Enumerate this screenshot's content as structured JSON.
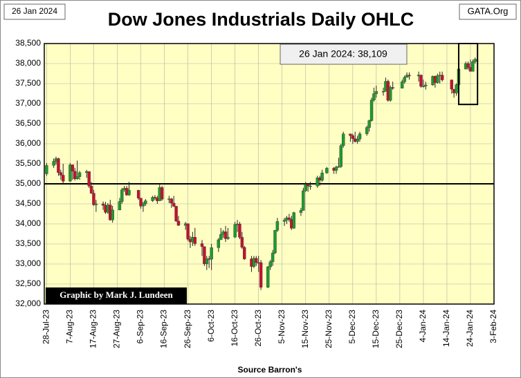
{
  "chart_data": {
    "type": "candlestick",
    "title": "Dow Jones Industrials Daily OHLC",
    "date_label": "26 Jan 2024",
    "site": "GATA.Org",
    "annotation": "26 Jan 2024:  38,109",
    "credit": "Graphic by Mark J. Lundeen",
    "x_label": "Source Barron's",
    "up_color": "#1e9b2a",
    "down_color": "#c8102e",
    "background": "#ffffc4",
    "grid": true,
    "reference_line": 35000,
    "highlight_box": {
      "x": [
        "2024-01-19",
        "2024-01-27"
      ],
      "y": [
        36980,
        38500
      ]
    },
    "xlim": [
      "2023-07-27",
      "2024-02-03"
    ],
    "xticks": [
      {
        "value": "2023-07-28",
        "label": "28-Jul-23"
      },
      {
        "value": "2023-08-07",
        "label": "7-Aug-23"
      },
      {
        "value": "2023-08-17",
        "label": "17-Aug-23"
      },
      {
        "value": "2023-08-27",
        "label": "27-Aug-23"
      },
      {
        "value": "2023-09-06",
        "label": "6-Sep-23"
      },
      {
        "value": "2023-09-16",
        "label": "16-Sep-23"
      },
      {
        "value": "2023-09-26",
        "label": "26-Sep-23"
      },
      {
        "value": "2023-10-06",
        "label": "6-Oct-23"
      },
      {
        "value": "2023-10-16",
        "label": "16-Oct-23"
      },
      {
        "value": "2023-10-26",
        "label": "26-Oct-23"
      },
      {
        "value": "2023-11-05",
        "label": "5-Nov-23"
      },
      {
        "value": "2023-11-15",
        "label": "15-Nov-23"
      },
      {
        "value": "2023-11-25",
        "label": "25-Nov-23"
      },
      {
        "value": "2023-12-05",
        "label": "5-Dec-23"
      },
      {
        "value": "2023-12-15",
        "label": "15-Dec-23"
      },
      {
        "value": "2023-12-25",
        "label": "25-Dec-23"
      },
      {
        "value": "2024-01-04",
        "label": "4-Jan-24"
      },
      {
        "value": "2024-01-14",
        "label": "14-Jan-24"
      },
      {
        "value": "2024-01-24",
        "label": "24-Jan-24"
      },
      {
        "value": "2024-02-03",
        "label": "3-Feb-24"
      }
    ],
    "ylim": [
      32000,
      38500
    ],
    "yticks": [
      {
        "value": 32000,
        "label": "32,000"
      },
      {
        "value": 32500,
        "label": "32,500"
      },
      {
        "value": 33000,
        "label": "33,000"
      },
      {
        "value": 33500,
        "label": "33,500"
      },
      {
        "value": 34000,
        "label": "34,000"
      },
      {
        "value": 34500,
        "label": "34,500"
      },
      {
        "value": 35000,
        "label": "35,000"
      },
      {
        "value": 35500,
        "label": "35,500"
      },
      {
        "value": 36000,
        "label": "36,000"
      },
      {
        "value": 36500,
        "label": "36,500"
      },
      {
        "value": 37000,
        "label": "37,000"
      },
      {
        "value": 37500,
        "label": "37,500"
      },
      {
        "value": 38000,
        "label": "38,000"
      },
      {
        "value": 38500,
        "label": "38,500"
      }
    ],
    "x": [
      "2023-07-28",
      "2023-07-31",
      "2023-08-01",
      "2023-08-02",
      "2023-08-03",
      "2023-08-04",
      "2023-08-07",
      "2023-08-08",
      "2023-08-09",
      "2023-08-10",
      "2023-08-11",
      "2023-08-14",
      "2023-08-15",
      "2023-08-16",
      "2023-08-17",
      "2023-08-18",
      "2023-08-21",
      "2023-08-22",
      "2023-08-23",
      "2023-08-24",
      "2023-08-25",
      "2023-08-28",
      "2023-08-29",
      "2023-08-30",
      "2023-08-31",
      "2023-09-01",
      "2023-09-05",
      "2023-09-06",
      "2023-09-07",
      "2023-09-08",
      "2023-09-11",
      "2023-09-12",
      "2023-09-13",
      "2023-09-14",
      "2023-09-15",
      "2023-09-18",
      "2023-09-19",
      "2023-09-20",
      "2023-09-21",
      "2023-09-22",
      "2023-09-25",
      "2023-09-26",
      "2023-09-27",
      "2023-09-28",
      "2023-09-29",
      "2023-10-02",
      "2023-10-03",
      "2023-10-04",
      "2023-10-05",
      "2023-10-06",
      "2023-10-09",
      "2023-10-10",
      "2023-10-11",
      "2023-10-12",
      "2023-10-13",
      "2023-10-16",
      "2023-10-17",
      "2023-10-18",
      "2023-10-19",
      "2023-10-20",
      "2023-10-23",
      "2023-10-24",
      "2023-10-25",
      "2023-10-26",
      "2023-10-27",
      "2023-10-30",
      "2023-10-31",
      "2023-11-01",
      "2023-11-02",
      "2023-11-03",
      "2023-11-06",
      "2023-11-07",
      "2023-11-08",
      "2023-11-09",
      "2023-11-10",
      "2023-11-13",
      "2023-11-14",
      "2023-11-15",
      "2023-11-16",
      "2023-11-17",
      "2023-11-20",
      "2023-11-21",
      "2023-11-22",
      "2023-11-24",
      "2023-11-27",
      "2023-11-28",
      "2023-11-29",
      "2023-11-30",
      "2023-12-01",
      "2023-12-04",
      "2023-12-05",
      "2023-12-06",
      "2023-12-07",
      "2023-12-08",
      "2023-12-11",
      "2023-12-12",
      "2023-12-13",
      "2023-12-14",
      "2023-12-15",
      "2023-12-18",
      "2023-12-19",
      "2023-12-20",
      "2023-12-21",
      "2023-12-22",
      "2023-12-26",
      "2023-12-27",
      "2023-12-28",
      "2023-12-29",
      "2024-01-02",
      "2024-01-03",
      "2024-01-04",
      "2024-01-05",
      "2024-01-08",
      "2024-01-09",
      "2024-01-10",
      "2024-01-11",
      "2024-01-12",
      "2024-01-16",
      "2024-01-17",
      "2024-01-18",
      "2024-01-19",
      "2024-01-22",
      "2024-01-23",
      "2024-01-24",
      "2024-01-25",
      "2024-01-26"
    ],
    "open": [
      35250,
      35459,
      35560,
      35630,
      35282,
      35216,
      35066,
      35474,
      35315,
      35124,
      35176,
      35281,
      35308,
      34946,
      34766,
      34475,
      34500,
      34463,
      34288,
      34473,
      34099,
      34347,
      34559,
      34852,
      34890,
      34722,
      34838,
      34642,
      34443,
      34501,
      34577,
      34664,
      34646,
      34576,
      34907,
      34618,
      34624,
      34518,
      34441,
      34070,
      33964,
      34007,
      33618,
      33550,
      33667,
      33508,
      33433,
      33002,
      33130,
      33120,
      33407,
      33605,
      33740,
      33804,
      33631,
      33670,
      33985,
      33998,
      33665,
      33415,
      33127,
      32937,
      33141,
      33036,
      33035,
      32418,
      32929,
      33053,
      33275,
      33839,
      34061,
      34096,
      34153,
      34112,
      33892,
      34283,
      34337,
      34828,
      34991,
      34946,
      34947,
      35151,
      35088,
      35273,
      35390,
      35334,
      35417,
      35430,
      35951,
      36246,
      36204,
      36125,
      36054,
      36118,
      36248,
      36405,
      36578,
      37090,
      37248,
      37306,
      37306,
      37558,
      37083,
      37405,
      37386,
      37545,
      37657,
      37711,
      37690,
      37715,
      37431,
      37440,
      37466,
      37683,
      37525,
      37696,
      37711,
      37593,
      37361,
      37267,
      37469,
      37864,
      38002,
      37906,
      37806,
      38050
    ],
    "high": [
      35520,
      35630,
      35680,
      35650,
      35350,
      35500,
      35520,
      35480,
      35400,
      35580,
      35320,
      35350,
      35310,
      35050,
      34850,
      34600,
      34560,
      34550,
      34520,
      34600,
      34450,
      34650,
      34900,
      34950,
      34950,
      35050,
      34850,
      34650,
      34550,
      34620,
      34700,
      34720,
      34700,
      34980,
      34950,
      34700,
      34650,
      34700,
      34450,
      34200,
      34050,
      34000,
      33700,
      33800,
      33900,
      33600,
      33430,
      33200,
      33200,
      33500,
      33650,
      33900,
      33850,
      33950,
      33900,
      34050,
      34100,
      34050,
      33800,
      33450,
      33200,
      33200,
      33200,
      33200,
      33100,
      32950,
      33100,
      33350,
      33850,
      34150,
      34150,
      34200,
      34250,
      34200,
      34300,
      34400,
      34900,
      35050,
      35000,
      35050,
      35200,
      35200,
      35350,
      35420,
      35420,
      35450,
      35650,
      36000,
      36300,
      36250,
      36250,
      36300,
      36200,
      36300,
      36450,
      36600,
      37150,
      37400,
      37450,
      37400,
      37650,
      37600,
      37450,
      37550,
      37600,
      37700,
      37780,
      37780,
      37800,
      37720,
      37600,
      37550,
      37700,
      37700,
      37750,
      37800,
      37800,
      37600,
      37350,
      37500,
      37900,
      38050,
      38050,
      38100,
      38100,
      38150
    ],
    "low": [
      35200,
      35400,
      35480,
      35200,
      35100,
      35000,
      35050,
      35100,
      35080,
      35100,
      35100,
      35150,
      34900,
      34750,
      34450,
      34300,
      34350,
      34250,
      34250,
      34080,
      34030,
      34340,
      34500,
      34800,
      34700,
      34700,
      34600,
      34380,
      34300,
      34450,
      34550,
      34600,
      34500,
      34570,
      34580,
      34520,
      34400,
      34420,
      34050,
      33950,
      33850,
      33580,
      33400,
      33450,
      33450,
      33200,
      32950,
      32850,
      32900,
      32850,
      33300,
      33600,
      33650,
      33550,
      33600,
      33650,
      33800,
      33620,
      33380,
      33100,
      32800,
      32900,
      32950,
      32800,
      32350,
      32400,
      32850,
      32950,
      33250,
      33800,
      33950,
      34000,
      34050,
      33850,
      33880,
      34200,
      34330,
      34800,
      34800,
      34850,
      34900,
      34950,
      35050,
      35250,
      35250,
      35250,
      35400,
      35400,
      35900,
      36050,
      36000,
      36030,
      36000,
      36050,
      36200,
      36300,
      36550,
      37050,
      37150,
      37200,
      37300,
      37050,
      37050,
      37350,
      37380,
      37500,
      37650,
      37600,
      37550,
      37400,
      37400,
      37350,
      37450,
      37400,
      37500,
      37500,
      37550,
      37250,
      37150,
      37200,
      37450,
      37850,
      37850,
      37800,
      37800,
      38000
    ],
    "close": [
      35459,
      35560,
      35630,
      35282,
      35216,
      35066,
      35474,
      35315,
      35124,
      35176,
      35281,
      35308,
      34946,
      34766,
      34475,
      34500,
      34463,
      34288,
      34473,
      34099,
      34347,
      34559,
      34852,
      34890,
      34722,
      34838,
      34642,
      34443,
      34501,
      34577,
      34664,
      34646,
      34576,
      34907,
      34618,
      34624,
      34518,
      34441,
      34070,
      33964,
      34007,
      33618,
      33550,
      33667,
      33508,
      33433,
      33002,
      33130,
      33120,
      33407,
      33605,
      33740,
      33804,
      33631,
      33670,
      33985,
      33998,
      33665,
      33415,
      33127,
      32937,
      33141,
      33036,
      33035,
      32418,
      32929,
      33053,
      33275,
      33839,
      34061,
      34096,
      34153,
      34112,
      33892,
      34283,
      34337,
      34828,
      34991,
      34946,
      34947,
      35151,
      35088,
      35273,
      35390,
      35334,
      35417,
      35430,
      35951,
      36246,
      36204,
      36125,
      36054,
      36118,
      36248,
      36405,
      36578,
      37090,
      37248,
      37306,
      37306,
      37558,
      37083,
      37405,
      37386,
      37545,
      37657,
      37711,
      37690,
      37715,
      37431,
      37440,
      37466,
      37683,
      37525,
      37696,
      37711,
      37593,
      37361,
      37267,
      37469,
      37864,
      38002,
      37906,
      37806,
      38050,
      38109
    ]
  }
}
